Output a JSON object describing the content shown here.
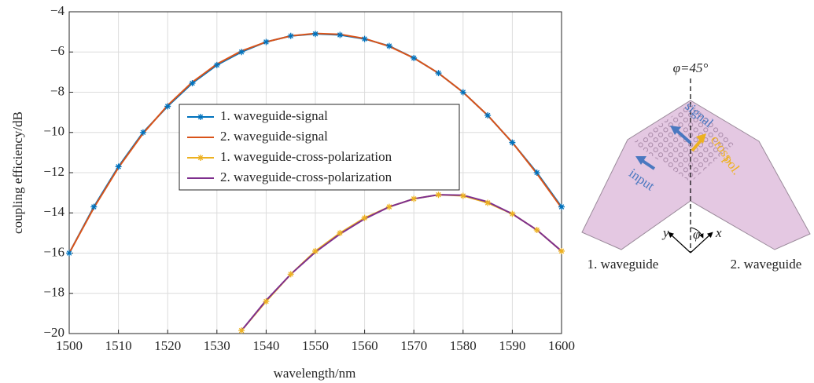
{
  "chart_data": {
    "type": "line",
    "xlabel": "wavelength/nm",
    "ylabel": "coupling efficiency/dB",
    "xlim": [
      1500,
      1600
    ],
    "ylim": [
      -20,
      -4
    ],
    "xticks": [
      1500,
      1510,
      1520,
      1530,
      1540,
      1550,
      1560,
      1570,
      1580,
      1590,
      1600
    ],
    "yticks": [
      {
        "value": -20,
        "label": "−20"
      },
      {
        "value": -18,
        "label": "−18"
      },
      {
        "value": -16,
        "label": "−16"
      },
      {
        "value": -14,
        "label": "−14"
      },
      {
        "value": -12,
        "label": "−12"
      },
      {
        "value": -10,
        "label": "−10"
      },
      {
        "value": -8,
        "label": "−8"
      },
      {
        "value": -6,
        "label": "−6"
      },
      {
        "value": -4,
        "label": "−4"
      }
    ],
    "grid": true,
    "series": [
      {
        "name": "1. waveguide-signal",
        "color": "#0072bd",
        "marker": true,
        "x": [
          1500,
          1505,
          1510,
          1515,
          1520,
          1525,
          1530,
          1535,
          1540,
          1545,
          1550,
          1555,
          1560,
          1565,
          1570,
          1575,
          1580,
          1585,
          1590,
          1595,
          1600
        ],
        "values": [
          -16.0,
          -13.7,
          -11.7,
          -10.0,
          -8.7,
          -7.55,
          -6.65,
          -6.0,
          -5.5,
          -5.2,
          -5.1,
          -5.15,
          -5.35,
          -5.7,
          -6.3,
          -7.05,
          -8.0,
          -9.15,
          -10.5,
          -12.0,
          -13.7
        ]
      },
      {
        "name": "2. waveguide-signal",
        "color": "#d95319",
        "marker": false,
        "x": [
          1500,
          1505,
          1510,
          1515,
          1520,
          1525,
          1530,
          1535,
          1540,
          1545,
          1550,
          1555,
          1560,
          1565,
          1570,
          1575,
          1580,
          1585,
          1590,
          1595,
          1600
        ],
        "values": [
          -16.0,
          -13.75,
          -11.75,
          -10.05,
          -8.65,
          -7.5,
          -6.6,
          -5.95,
          -5.5,
          -5.2,
          -5.08,
          -5.12,
          -5.33,
          -5.72,
          -6.3,
          -7.05,
          -8.0,
          -9.15,
          -10.5,
          -12.05,
          -13.75
        ]
      },
      {
        "name": "1. waveguide-cross-polarization",
        "color": "#edb120",
        "marker": true,
        "x": [
          1535,
          1540,
          1545,
          1550,
          1555,
          1560,
          1565,
          1570,
          1575,
          1580,
          1585,
          1590,
          1595,
          1600
        ],
        "values": [
          -19.85,
          -18.4,
          -17.05,
          -15.9,
          -15.0,
          -14.25,
          -13.7,
          -13.3,
          -13.1,
          -13.15,
          -13.5,
          -14.05,
          -14.85,
          -15.9
        ]
      },
      {
        "name": "2. waveguide-cross-polarization",
        "color": "#7e2f8e",
        "marker": false,
        "x": [
          1535,
          1540,
          1545,
          1550,
          1555,
          1560,
          1565,
          1570,
          1575,
          1580,
          1585,
          1590,
          1595,
          1600
        ],
        "values": [
          -19.85,
          -18.35,
          -17.05,
          -15.95,
          -15.05,
          -14.3,
          -13.7,
          -13.3,
          -13.1,
          -13.12,
          -13.45,
          -14.05,
          -14.85,
          -15.9
        ]
      }
    ]
  },
  "diagram": {
    "angle": "φ=45°",
    "signal": "signal",
    "cross_pol": [
      "cross-",
      "pol."
    ],
    "input": "input",
    "axis_y": "y",
    "axis_phi": "φ",
    "axis_x": "x",
    "waveguide_1": "1. waveguide",
    "waveguide_2": "2. waveguide"
  }
}
